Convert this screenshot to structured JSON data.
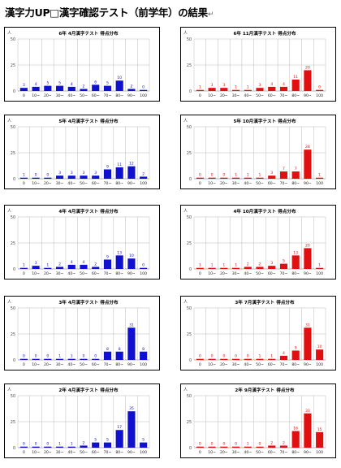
{
  "page_title": "漢字力UP□漢字確認テスト（前学年）の結果",
  "return_mark": "↵",
  "y_unit": "人",
  "x_categories": [
    "0",
    "10~",
    "20~",
    "30~",
    "40~",
    "50~",
    "60~",
    "70~",
    "80~",
    "90~",
    "100"
  ],
  "colors": {
    "left": "#1010d0",
    "right": "#e01010",
    "grid": "#bbbbbb",
    "label_left": "#1010d0",
    "label_right": "#e01010"
  },
  "chart_data": [
    {
      "id": "g6-apr",
      "type": "bar",
      "title": "6年 4月漢字テスト 得点分布",
      "ylim": [
        0,
        50
      ],
      "yticks": [
        0,
        25,
        50
      ],
      "side": "left",
      "categories": [
        "0",
        "10~",
        "20~",
        "30~",
        "40~",
        "50~",
        "60~",
        "70~",
        "80~",
        "90~",
        "100"
      ],
      "values": [
        3,
        4,
        5,
        5,
        4,
        2,
        6,
        5,
        10,
        2,
        0
      ]
    },
    {
      "id": "g6-nov",
      "type": "bar",
      "title": "6年 11月漢字テスト 得点分布",
      "ylim": [
        0,
        50
      ],
      "yticks": [
        0,
        25,
        50
      ],
      "side": "right",
      "categories": [
        "0",
        "10~",
        "20~",
        "30~",
        "40~",
        "50~",
        "60~",
        "70~",
        "80~",
        "90~",
        "100"
      ],
      "values": [
        1,
        3,
        3,
        1,
        1,
        3,
        4,
        4,
        11,
        20,
        0
      ]
    },
    {
      "id": "g5-apr",
      "type": "bar",
      "title": "5年 4月漢字テスト 得点分布",
      "ylim": [
        0,
        50
      ],
      "yticks": [
        0,
        25,
        50
      ],
      "side": "left",
      "categories": [
        "0",
        "10~",
        "20~",
        "30~",
        "40~",
        "50~",
        "60~",
        "70~",
        "80~",
        "90~",
        "100"
      ],
      "values": [
        1,
        0,
        0,
        3,
        3,
        3,
        3,
        9,
        11,
        12,
        2
      ]
    },
    {
      "id": "g5-oct",
      "type": "bar",
      "title": "5年 10月漢字テスト 得点分布",
      "ylim": [
        0,
        50
      ],
      "yticks": [
        0,
        25,
        50
      ],
      "side": "right",
      "categories": [
        "0",
        "10~",
        "20~",
        "30~",
        "40~",
        "50~",
        "60~",
        "70~",
        "80~",
        "90~",
        "100"
      ],
      "values": [
        0,
        0,
        0,
        1,
        1,
        1,
        3,
        7,
        7,
        28,
        1
      ]
    },
    {
      "id": "g4-apr",
      "type": "bar",
      "title": "4年 4月漢字テスト 得点分布",
      "ylim": [
        0,
        50
      ],
      "yticks": [
        0,
        25,
        50
      ],
      "side": "left",
      "categories": [
        "0",
        "10~",
        "20~",
        "30~",
        "40~",
        "50~",
        "60~",
        "70~",
        "80~",
        "90~",
        "100"
      ],
      "values": [
        1,
        3,
        1,
        2,
        4,
        4,
        2,
        9,
        13,
        10,
        0
      ]
    },
    {
      "id": "g4-oct",
      "type": "bar",
      "title": "4年 10月漢字テスト 得点分布",
      "ylim": [
        0,
        50
      ],
      "yticks": [
        0,
        25,
        50
      ],
      "side": "right",
      "categories": [
        "0",
        "10~",
        "20~",
        "30~",
        "40~",
        "50~",
        "60~",
        "70~",
        "80~",
        "90~",
        "100"
      ],
      "values": [
        1,
        1,
        1,
        1,
        2,
        2,
        3,
        5,
        13,
        20,
        1
      ]
    },
    {
      "id": "g3-apr",
      "type": "bar",
      "title": "3年 4月漢字テスト 得点分布",
      "ylim": [
        0,
        50
      ],
      "yticks": [
        0,
        25,
        50
      ],
      "side": "left",
      "categories": [
        "0",
        "10~",
        "20~",
        "30~",
        "40~",
        "50~",
        "60~",
        "70~",
        "80~",
        "90~",
        "100"
      ],
      "values": [
        0,
        0,
        0,
        1,
        1,
        0,
        0,
        8,
        8,
        31,
        8
      ]
    },
    {
      "id": "g3-jul",
      "type": "bar",
      "title": "3年 7月漢字テスト 得点分布",
      "ylim": [
        0,
        50
      ],
      "yticks": [
        0,
        25,
        50
      ],
      "side": "right",
      "categories": [
        "0",
        "10~",
        "20~",
        "30~",
        "40~",
        "50~",
        "60~",
        "70~",
        "80~",
        "90~",
        "100"
      ],
      "values": [
        0,
        0,
        0,
        0,
        0,
        1,
        1,
        4,
        9,
        31,
        10
      ]
    },
    {
      "id": "g2-apr",
      "type": "bar",
      "title": "2年 4月漢字テスト 得点分布",
      "ylim": [
        0,
        50
      ],
      "yticks": [
        0,
        25,
        50
      ],
      "side": "left",
      "categories": [
        "0",
        "10~",
        "20~",
        "30~",
        "40~",
        "50~",
        "60~",
        "70~",
        "80~",
        "90~",
        "100"
      ],
      "values": [
        0,
        0,
        0,
        1,
        1,
        2,
        5,
        5,
        17,
        35,
        5
      ]
    },
    {
      "id": "g2-sep",
      "type": "bar",
      "title": "2年 9月漢字テスト 得点分布",
      "ylim": [
        0,
        50
      ],
      "yticks": [
        0,
        25,
        50
      ],
      "side": "right",
      "categories": [
        "0",
        "10~",
        "20~",
        "30~",
        "40~",
        "50~",
        "60~",
        "70~",
        "80~",
        "90~",
        "100"
      ],
      "values": [
        0,
        0,
        0,
        0,
        1,
        0,
        2,
        2,
        16,
        33,
        15
      ]
    }
  ]
}
